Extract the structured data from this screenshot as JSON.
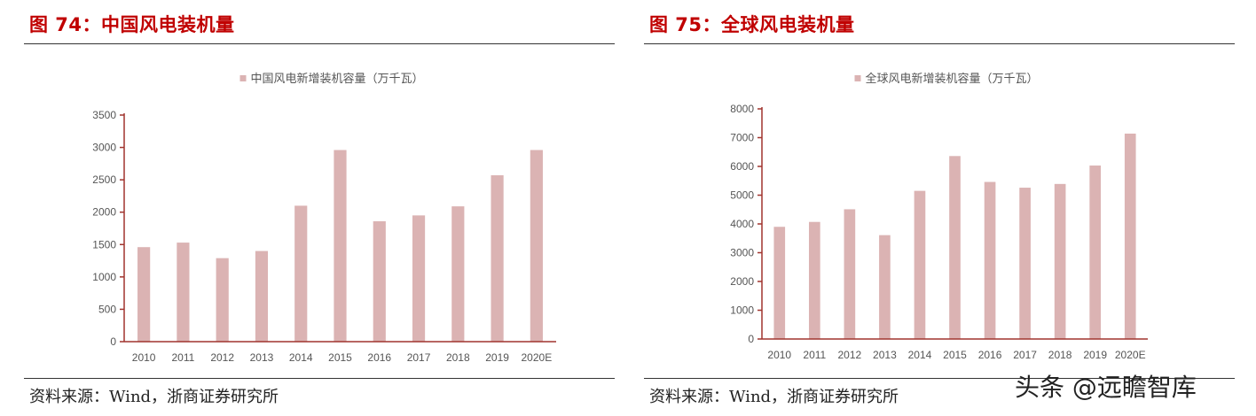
{
  "watermark": "头条 @远瞻智库",
  "figures": [
    {
      "title": "图 74：中国风电装机量",
      "source": "资料来源：Wind，浙商证券研究所"
    },
    {
      "title": "图 75：全球风电装机量",
      "source": "资料来源：Wind，浙商证券研究所"
    }
  ],
  "chart_data": [
    {
      "type": "bar",
      "title": "",
      "categories": [
        "2010",
        "2011",
        "2012",
        "2013",
        "2014",
        "2015",
        "2016",
        "2017",
        "2018",
        "2019",
        "2020E"
      ],
      "series": [
        {
          "name": "中国风电新增装机容量（万千瓦）",
          "values": [
            1460,
            1530,
            1290,
            1400,
            2100,
            2960,
            1860,
            1950,
            2090,
            2570,
            2960
          ]
        }
      ],
      "yticks": [
        0,
        500,
        1000,
        1500,
        2000,
        2500,
        3000,
        3500
      ],
      "ylim": [
        0,
        3500
      ],
      "grid": false,
      "legend": "top-center",
      "colors": {
        "bar": "#dbb3b3",
        "axis": "#a0342e",
        "text": "#555555"
      }
    },
    {
      "type": "bar",
      "title": "",
      "categories": [
        "2010",
        "2011",
        "2012",
        "2013",
        "2014",
        "2015",
        "2016",
        "2017",
        "2018",
        "2019",
        "2020E"
      ],
      "series": [
        {
          "name": "全球风电新增装机容量（万千瓦）",
          "values": [
            3900,
            4070,
            4510,
            3610,
            5150,
            6360,
            5460,
            5260,
            5390,
            6030,
            7140
          ]
        }
      ],
      "yticks": [
        0,
        1000,
        2000,
        3000,
        4000,
        5000,
        6000,
        7000,
        8000
      ],
      "ylim": [
        0,
        8000
      ],
      "grid": false,
      "legend": "top-center",
      "colors": {
        "bar": "#dbb3b3",
        "axis": "#a0342e",
        "text": "#555555"
      }
    }
  ]
}
